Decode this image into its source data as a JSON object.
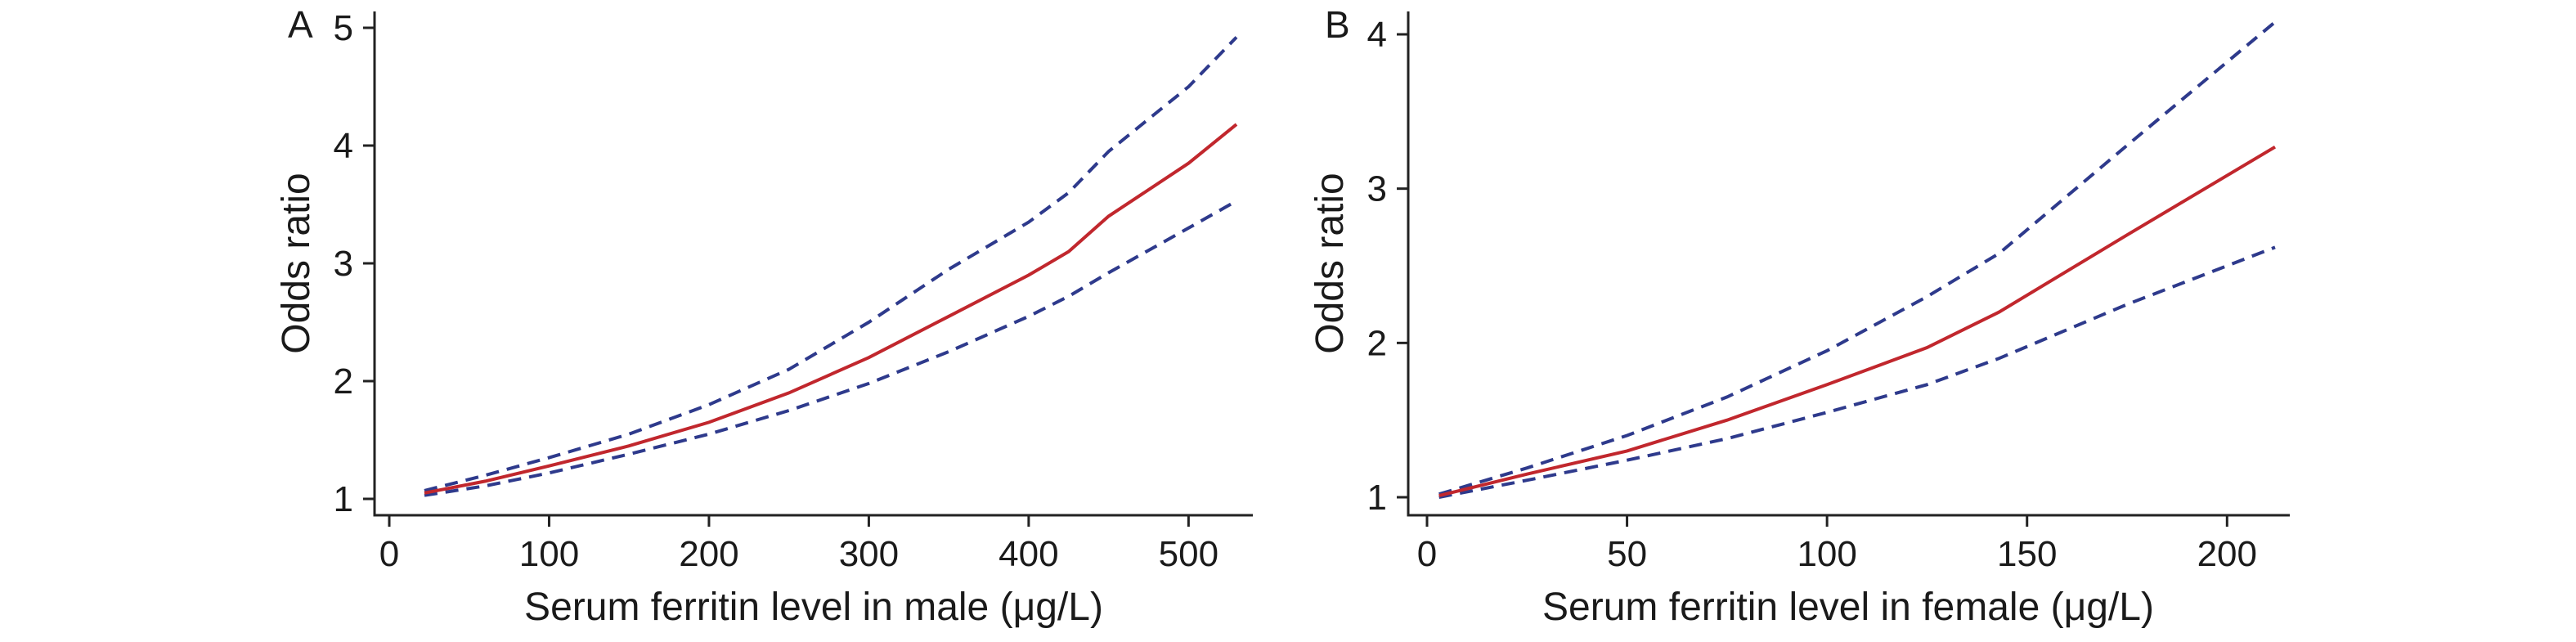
{
  "chart_data": [
    {
      "type": "line",
      "panel_label": "A",
      "xlabel": "Serum ferritin level in male (μg/L)",
      "ylabel": "Odds ratio",
      "xlim": [
        0,
        530
      ],
      "ylim": [
        1,
        5
      ],
      "x_ticks": [
        0,
        100,
        200,
        300,
        400,
        500
      ],
      "y_ticks": [
        1,
        2,
        3,
        4,
        5
      ],
      "colors": {
        "estimate": "#c1272d",
        "ci": "#2e3a8c"
      },
      "series": [
        {
          "name": "Odds ratio",
          "style": "solid",
          "x": [
            22,
            60,
            100,
            150,
            200,
            250,
            300,
            350,
            400,
            425,
            450,
            500,
            530
          ],
          "y": [
            1.05,
            1.15,
            1.28,
            1.45,
            1.65,
            1.9,
            2.2,
            2.55,
            2.9,
            3.1,
            3.4,
            3.85,
            4.18
          ]
        },
        {
          "name": "Upper 95% CI",
          "style": "dashed",
          "x": [
            22,
            60,
            100,
            150,
            200,
            250,
            300,
            350,
            400,
            425,
            450,
            500,
            530
          ],
          "y": [
            1.07,
            1.2,
            1.35,
            1.55,
            1.8,
            2.1,
            2.5,
            2.95,
            3.35,
            3.6,
            3.95,
            4.5,
            4.92
          ]
        },
        {
          "name": "Lower 95% CI",
          "style": "dashed",
          "x": [
            22,
            60,
            100,
            150,
            200,
            250,
            300,
            350,
            400,
            425,
            450,
            500,
            530
          ],
          "y": [
            1.03,
            1.11,
            1.22,
            1.38,
            1.55,
            1.75,
            1.98,
            2.25,
            2.55,
            2.72,
            2.92,
            3.3,
            3.53
          ]
        }
      ]
    },
    {
      "type": "line",
      "panel_label": "B",
      "xlabel": "Serum ferritin level in female (μg/L)",
      "ylabel": "Odds ratio",
      "xlim": [
        0,
        212
      ],
      "ylim": [
        1,
        4
      ],
      "x_ticks": [
        0,
        50,
        100,
        150,
        200
      ],
      "y_ticks": [
        1,
        2,
        3,
        4
      ],
      "colors": {
        "estimate": "#c1272d",
        "ci": "#2e3a8c"
      },
      "series": [
        {
          "name": "Odds ratio",
          "style": "solid",
          "x": [
            3,
            25,
            50,
            75,
            100,
            125,
            143,
            175,
            212
          ],
          "y": [
            1.01,
            1.15,
            1.3,
            1.5,
            1.73,
            1.97,
            2.2,
            2.7,
            3.27
          ]
        },
        {
          "name": "Upper 95% CI",
          "style": "dashed",
          "x": [
            3,
            25,
            50,
            75,
            100,
            125,
            143,
            175,
            212
          ],
          "y": [
            1.02,
            1.19,
            1.4,
            1.65,
            1.95,
            2.3,
            2.58,
            3.28,
            4.08
          ]
        },
        {
          "name": "Lower 95% CI",
          "style": "dashed",
          "x": [
            3,
            25,
            50,
            75,
            100,
            125,
            143,
            175,
            212
          ],
          "y": [
            1.0,
            1.11,
            1.24,
            1.38,
            1.55,
            1.73,
            1.9,
            2.25,
            2.62
          ]
        }
      ]
    }
  ]
}
